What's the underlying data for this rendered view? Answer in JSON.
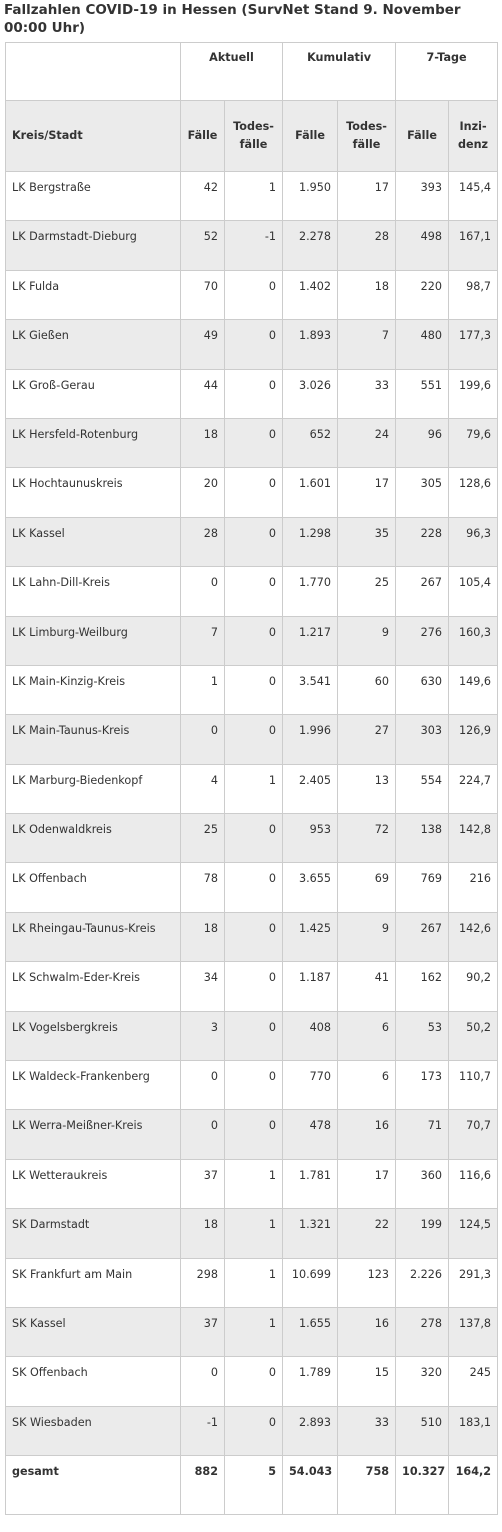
{
  "title": "Fallzahlen COVID-19 in Hessen (SurvNet Stand 9. November 00:00 Uhr)",
  "group_headers": [
    "",
    "Aktuell",
    "Kumulativ",
    "7-Tage"
  ],
  "column_headers": [
    "Kreis/Stadt",
    "Fälle",
    "Todes-fälle",
    "Fälle",
    "Todes-fälle",
    "Fälle",
    "Inzi-denz"
  ],
  "rows": [
    [
      "LK Bergstraße",
      "42",
      "1",
      "1.950",
      "17",
      "393",
      "145,4"
    ],
    [
      "LK Darmstadt-Dieburg",
      "52",
      "-1",
      "2.278",
      "28",
      "498",
      "167,1"
    ],
    [
      "LK Fulda",
      "70",
      "0",
      "1.402",
      "18",
      "220",
      "98,7"
    ],
    [
      "LK Gießen",
      "49",
      "0",
      "1.893",
      "7",
      "480",
      "177,3"
    ],
    [
      "LK Groß-Gerau",
      "44",
      "0",
      "3.026",
      "33",
      "551",
      "199,6"
    ],
    [
      "LK Hersfeld-Rotenburg",
      "18",
      "0",
      "652",
      "24",
      "96",
      "79,6"
    ],
    [
      "LK Hochtaunuskreis",
      "20",
      "0",
      "1.601",
      "17",
      "305",
      "128,6"
    ],
    [
      "LK Kassel",
      "28",
      "0",
      "1.298",
      "35",
      "228",
      "96,3"
    ],
    [
      "LK Lahn-Dill-Kreis",
      "0",
      "0",
      "1.770",
      "25",
      "267",
      "105,4"
    ],
    [
      "LK Limburg-Weilburg",
      "7",
      "0",
      "1.217",
      "9",
      "276",
      "160,3"
    ],
    [
      "LK Main-Kinzig-Kreis",
      "1",
      "0",
      "3.541",
      "60",
      "630",
      "149,6"
    ],
    [
      "LK Main-Taunus-Kreis",
      "0",
      "0",
      "1.996",
      "27",
      "303",
      "126,9"
    ],
    [
      "LK Marburg-Biedenkopf",
      "4",
      "1",
      "2.405",
      "13",
      "554",
      "224,7"
    ],
    [
      "LK Odenwaldkreis",
      "25",
      "0",
      "953",
      "72",
      "138",
      "142,8"
    ],
    [
      "LK Offenbach",
      "78",
      "0",
      "3.655",
      "69",
      "769",
      "216"
    ],
    [
      "LK Rheingau-Taunus-Kreis",
      "18",
      "0",
      "1.425",
      "9",
      "267",
      "142,6"
    ],
    [
      "LK Schwalm-Eder-Kreis",
      "34",
      "0",
      "1.187",
      "41",
      "162",
      "90,2"
    ],
    [
      "LK Vogelsbergkreis",
      "3",
      "0",
      "408",
      "6",
      "53",
      "50,2"
    ],
    [
      "LK Waldeck-Frankenberg",
      "0",
      "0",
      "770",
      "6",
      "173",
      "110,7"
    ],
    [
      "LK Werra-Meißner-Kreis",
      "0",
      "0",
      "478",
      "16",
      "71",
      "70,7"
    ],
    [
      "LK Wetteraukreis",
      "37",
      "1",
      "1.781",
      "17",
      "360",
      "116,6"
    ],
    [
      "SK Darmstadt",
      "18",
      "1",
      "1.321",
      "22",
      "199",
      "124,5"
    ],
    [
      "SK Frankfurt am Main",
      "298",
      "1",
      "10.699",
      "123",
      "2.226",
      "291,3"
    ],
    [
      "SK Kassel",
      "37",
      "1",
      "1.655",
      "16",
      "278",
      "137,8"
    ],
    [
      "SK Offenbach",
      "0",
      "0",
      "1.789",
      "15",
      "320",
      "245"
    ],
    [
      "SK Wiesbaden",
      "-1",
      "0",
      "2.893",
      "33",
      "510",
      "183,1"
    ]
  ],
  "total": [
    "gesamt",
    "882",
    "5",
    "54.043",
    "758",
    "10.327",
    "164,2"
  ]
}
